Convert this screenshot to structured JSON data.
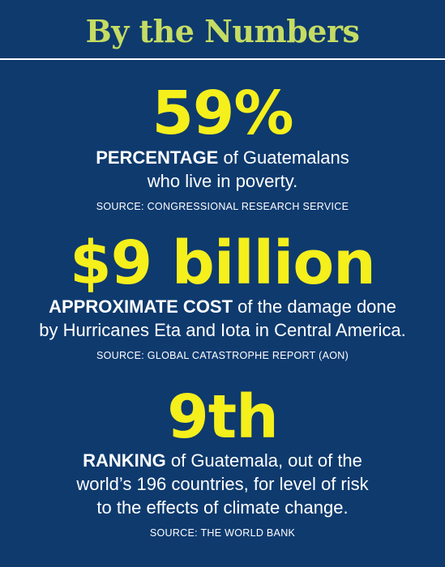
{
  "header": {
    "title": "By the Numbers"
  },
  "colors": {
    "background": "#0e3a6e",
    "title": "#c5dc63",
    "figure": "#f5ef1c",
    "text": "#ffffff"
  },
  "stats": [
    {
      "figure": "59%",
      "lead": "PERCENTAGE",
      "line1_rest": " of Guatemalans",
      "line2": "who live in poverty.",
      "line3": "",
      "source": "SOURCE: CONGRESSIONAL RESEARCH SERVICE"
    },
    {
      "figure": "$9 billion",
      "lead": "APPROXIMATE COST",
      "line1_rest": " of the damage done",
      "line2": "by Hurricanes Eta and Iota in Central America.",
      "line3": "",
      "source": "SOURCE: GLOBAL CATASTROPHE REPORT (AON)"
    },
    {
      "figure": "9th",
      "lead": "RANKING",
      "line1_rest": " of Guatemala, out of the",
      "line2": "world’s 196 countries, for level of risk",
      "line3": "to the effects of climate change.",
      "source": "SOURCE: THE WORLD BANK"
    }
  ]
}
